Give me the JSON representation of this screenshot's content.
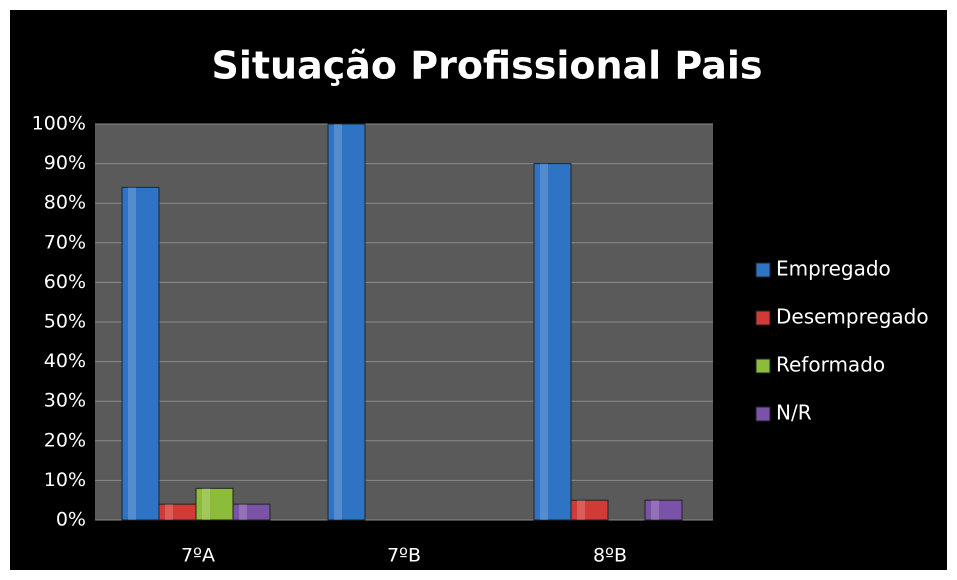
{
  "chart_data": {
    "type": "bar",
    "title": "Situação Profissional Pais",
    "categories": [
      "7ºA",
      "7ºB",
      "8ºB"
    ],
    "series": [
      {
        "name": "Empregado",
        "color": "#2f74c4",
        "values": [
          84,
          100,
          90
        ]
      },
      {
        "name": "Desempregado",
        "color": "#d23a36",
        "values": [
          4,
          0,
          5
        ]
      },
      {
        "name": "Reformado",
        "color": "#8dbb3a",
        "values": [
          8,
          0,
          0
        ]
      },
      {
        "name": "N/R",
        "color": "#7a52a8",
        "values": [
          4,
          0,
          5
        ]
      }
    ],
    "ylim": [
      0,
      100
    ],
    "yticks": [
      {
        "value": 0,
        "label": "0%"
      },
      {
        "value": 10,
        "label": "10%"
      },
      {
        "value": 20,
        "label": "20%"
      },
      {
        "value": 30,
        "label": "30%"
      },
      {
        "value": 40,
        "label": "40%"
      },
      {
        "value": 50,
        "label": "50%"
      },
      {
        "value": 60,
        "label": "60%"
      },
      {
        "value": 70,
        "label": "70%"
      },
      {
        "value": 80,
        "label": "80%"
      },
      {
        "value": 90,
        "label": "90%"
      },
      {
        "value": 100,
        "label": "100%"
      }
    ],
    "grid": true,
    "legend": "right"
  }
}
